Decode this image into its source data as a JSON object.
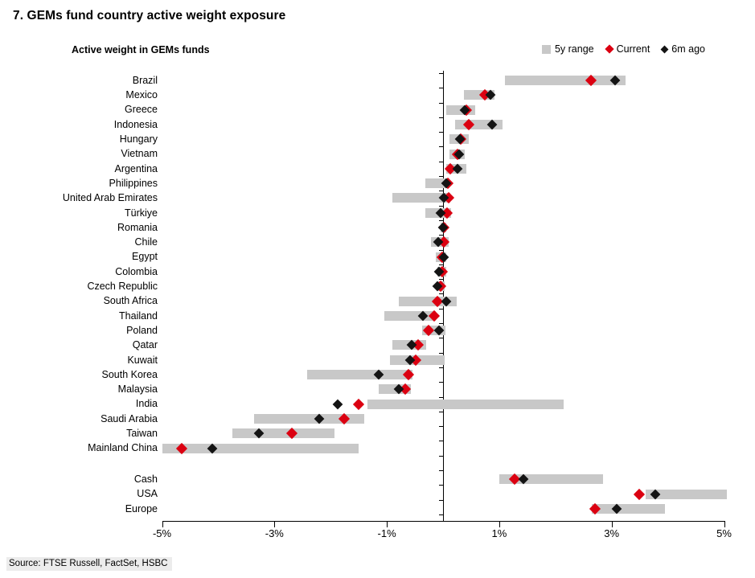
{
  "title": "7. GEMs fund country active weight exposure",
  "subtitle": "Active weight in GEMs funds",
  "source": "Source: FTSE Russell, FactSet, HSBC",
  "colors": {
    "range": "#c8c8c8",
    "current": "#db0011",
    "six_m_ago": "#141414",
    "axis": "#000000",
    "source_highlight": "#ececec"
  },
  "legend": {
    "items": [
      {
        "label": "5y range",
        "marker": "square",
        "color_key": "range"
      },
      {
        "label": "Current",
        "marker": "diamond",
        "color_key": "current"
      },
      {
        "label": "6m ago",
        "marker": "diamond",
        "color_key": "six_m_ago"
      }
    ]
  },
  "chart_data": {
    "type": "bar",
    "subtype": "horizontal-range-with-diamond-markers",
    "title": "7. GEMs fund country active weight exposure",
    "xlabel": "Active weight (%)",
    "unit": "%",
    "xlim": [
      -5,
      5
    ],
    "x_ticks": [
      {
        "value": -5,
        "label": "-5%"
      },
      {
        "value": -3,
        "label": "-3%"
      },
      {
        "value": -1,
        "label": "-1%"
      },
      {
        "value": 1,
        "label": "1%"
      },
      {
        "value": 3,
        "label": "3%"
      },
      {
        "value": 5,
        "label": "5%"
      }
    ],
    "grid": false,
    "legend_position": "top-right",
    "group_break_after_index": 25,
    "categories": [
      "Brazil",
      "Mexico",
      "Greece",
      "Indonesia",
      "Hungary",
      "Vietnam",
      "Argentina",
      "Philippines",
      "United Arab Emirates",
      "Türkiye",
      "Romania",
      "Chile",
      "Egypt",
      "Colombia",
      "Czech Republic",
      "South Africa",
      "Thailand",
      "Poland",
      "Qatar",
      "Kuwait",
      "South Korea",
      "Malaysia",
      "India",
      "Saudi Arabia",
      "Taiwan",
      "Mainland China",
      "Cash",
      "USA",
      "Europe"
    ],
    "series": [
      {
        "name": "5y range",
        "kind": "range",
        "values": [
          [
            1.1,
            3.25
          ],
          [
            0.37,
            0.92
          ],
          [
            0.05,
            0.57
          ],
          [
            0.22,
            1.06
          ],
          [
            0.11,
            0.46
          ],
          [
            0.11,
            0.39
          ],
          [
            0.06,
            0.42
          ],
          [
            -0.31,
            0.11
          ],
          [
            -0.9,
            0.13
          ],
          [
            -0.31,
            0.14
          ],
          [
            -0.05,
            0.05
          ],
          [
            -0.21,
            0.1
          ],
          [
            -0.13,
            0.06
          ],
          [
            -0.1,
            0.05
          ],
          [
            -0.12,
            0.03
          ],
          [
            -0.79,
            0.25
          ],
          [
            -1.04,
            -0.13
          ],
          [
            -0.37,
            0.05
          ],
          [
            -0.9,
            -0.3
          ],
          [
            -0.95,
            0.03
          ],
          [
            -2.42,
            -0.54
          ],
          [
            -1.15,
            -0.57
          ],
          [
            -1.34,
            2.15
          ],
          [
            -3.36,
            -1.4
          ],
          [
            -3.75,
            -1.93
          ],
          [
            -5.0,
            -1.51
          ],
          [
            1.0,
            2.85
          ],
          [
            3.61,
            5.05
          ],
          [
            2.64,
            3.95
          ]
        ]
      },
      {
        "name": "Current",
        "kind": "point",
        "values": [
          2.63,
          0.75,
          0.42,
          0.45,
          0.32,
          0.26,
          0.13,
          0.08,
          0.1,
          0.07,
          0.01,
          0.01,
          -0.02,
          -0.01,
          -0.04,
          -0.1,
          -0.16,
          -0.26,
          -0.44,
          -0.49,
          -0.61,
          -0.67,
          -1.51,
          -1.76,
          -2.69,
          -4.65,
          1.27,
          3.49,
          2.7
        ]
      },
      {
        "name": "6m ago",
        "kind": "point",
        "values": [
          3.06,
          0.85,
          0.39,
          0.87,
          0.3,
          0.28,
          0.25,
          0.05,
          0.01,
          -0.04,
          0.0,
          -0.09,
          0.01,
          -0.07,
          -0.1,
          0.06,
          -0.36,
          -0.07,
          -0.56,
          -0.59,
          -1.14,
          -0.79,
          -1.87,
          -2.21,
          -3.27,
          -4.11,
          1.43,
          3.78,
          3.09
        ]
      }
    ]
  }
}
